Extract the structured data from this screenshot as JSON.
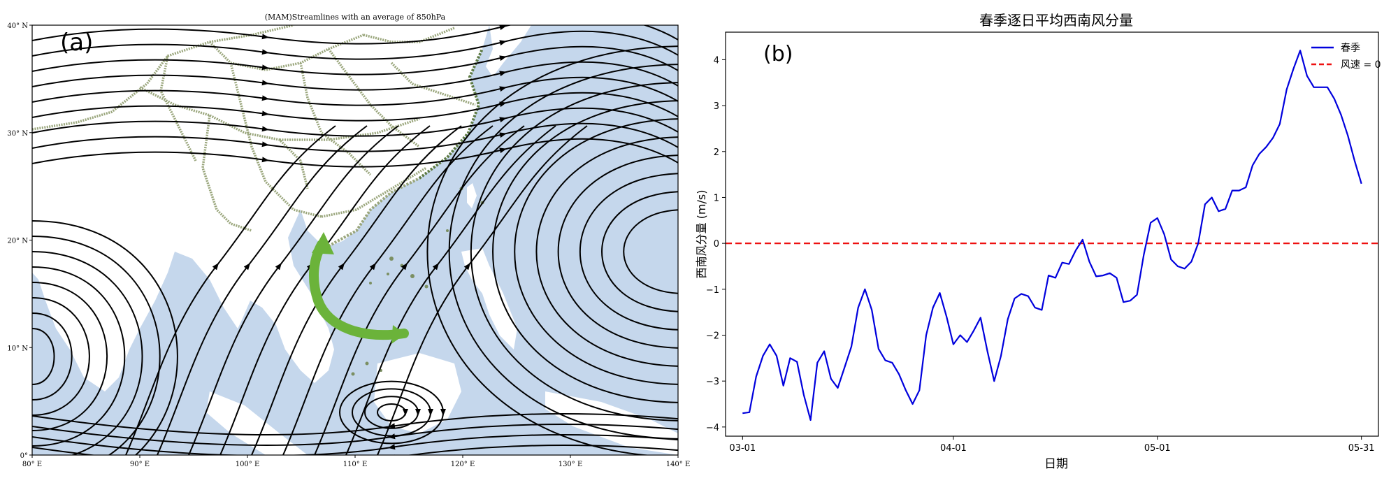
{
  "chart_data": [
    {
      "panel": "(a)",
      "type": "map-streamlines",
      "title": "(MAM)Streamlines with an average of 850hPa",
      "x_ticks": [
        "80° E",
        "90° E",
        "100° E",
        "110° E",
        "120° E",
        "130° E",
        "140° E"
      ],
      "y_ticks": [
        "0°",
        "10° N",
        "20° N",
        "30° N",
        "40° N"
      ],
      "xlim": [
        80,
        140
      ],
      "ylim": [
        0,
        40
      ],
      "colors": {
        "ocean": "#c5d7ec",
        "border": "#9aa67c",
        "coast_dark": "#5d7a43",
        "arrow": "#6bb33a",
        "streamline": "#000000"
      }
    },
    {
      "panel": "(b)",
      "type": "line",
      "title": "春季逐日平均西南风分量",
      "xlabel": "日期",
      "ylabel": "西南风分量 (m/s)",
      "ylim": [
        -4.2,
        4.6
      ],
      "xlim": [
        -2.5,
        93.5
      ],
      "x_tick_labels": [
        "03-01",
        "04-01",
        "05-01",
        "05-31"
      ],
      "x_tick_days": [
        0,
        31,
        61,
        91
      ],
      "y_ticks": [
        -4,
        -3,
        -2,
        -1,
        0,
        1,
        2,
        3,
        4
      ],
      "legend_position": "top-right",
      "series": [
        {
          "name": "春季",
          "color": "#0000dd",
          "style": "solid",
          "values": [
            -3.7,
            -3.68,
            -2.9,
            -2.45,
            -2.2,
            -2.45,
            -3.1,
            -2.5,
            -2.58,
            -3.3,
            -3.85,
            -2.6,
            -2.35,
            -2.95,
            -3.15,
            -2.7,
            -2.25,
            -1.4,
            -1.0,
            -1.45,
            -2.3,
            -2.55,
            -2.6,
            -2.85,
            -3.2,
            -3.5,
            -3.2,
            -2.0,
            -1.4,
            -1.08,
            -1.6,
            -2.2,
            -2.0,
            -2.15,
            -1.9,
            -1.62,
            -2.35,
            -3.0,
            -2.45,
            -1.65,
            -1.2,
            -1.1,
            -1.15,
            -1.4,
            -1.45,
            -0.7,
            -0.75,
            -0.42,
            -0.45,
            -0.15,
            0.08,
            -0.4,
            -0.72,
            -0.7,
            -0.65,
            -0.75,
            -1.28,
            -1.25,
            -1.12,
            -0.25,
            0.45,
            0.55,
            0.2,
            -0.35,
            -0.5,
            -0.55,
            -0.4,
            0.0,
            0.85,
            1.0,
            0.7,
            0.75,
            1.15,
            1.15,
            1.22,
            1.7,
            1.95,
            2.1,
            2.3,
            2.6,
            3.35,
            3.8,
            4.2,
            3.65,
            3.4,
            3.4,
            3.4,
            3.15,
            2.8,
            2.35,
            1.8,
            1.3
          ]
        },
        {
          "name": "风速 = 0",
          "color": "#ee1111",
          "style": "dashed",
          "values": [
            0
          ]
        }
      ]
    }
  ],
  "panel_a": {
    "label": "(a)"
  },
  "panel_b": {
    "label": "(b)"
  }
}
